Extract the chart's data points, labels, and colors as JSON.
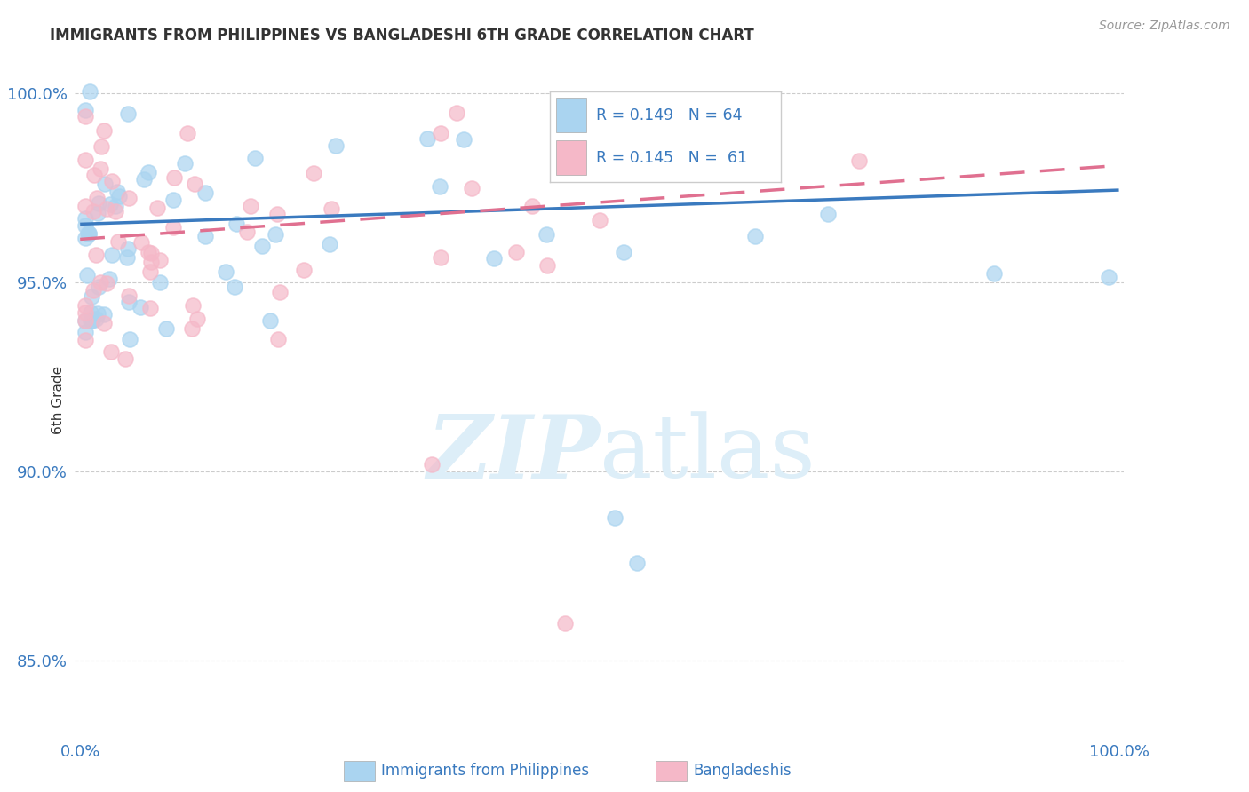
{
  "title": "IMMIGRANTS FROM PHILIPPINES VS BANGLADESHI 6TH GRADE CORRELATION CHART",
  "source": "Source: ZipAtlas.com",
  "ylabel": "6th Grade",
  "ytick_vals": [
    0.85,
    0.9,
    0.95,
    1.0
  ],
  "color_blue": "#aad4f0",
  "color_pink": "#f5b8c8",
  "color_blue_line": "#3a7abf",
  "color_pink_line": "#e07090",
  "watermark_color": "#ddeef8",
  "legend_text_color": "#3a7abf",
  "tick_color": "#3a7abf",
  "grid_color": "#cccccc",
  "title_color": "#333333",
  "source_color": "#999999",
  "ylabel_color": "#333333"
}
